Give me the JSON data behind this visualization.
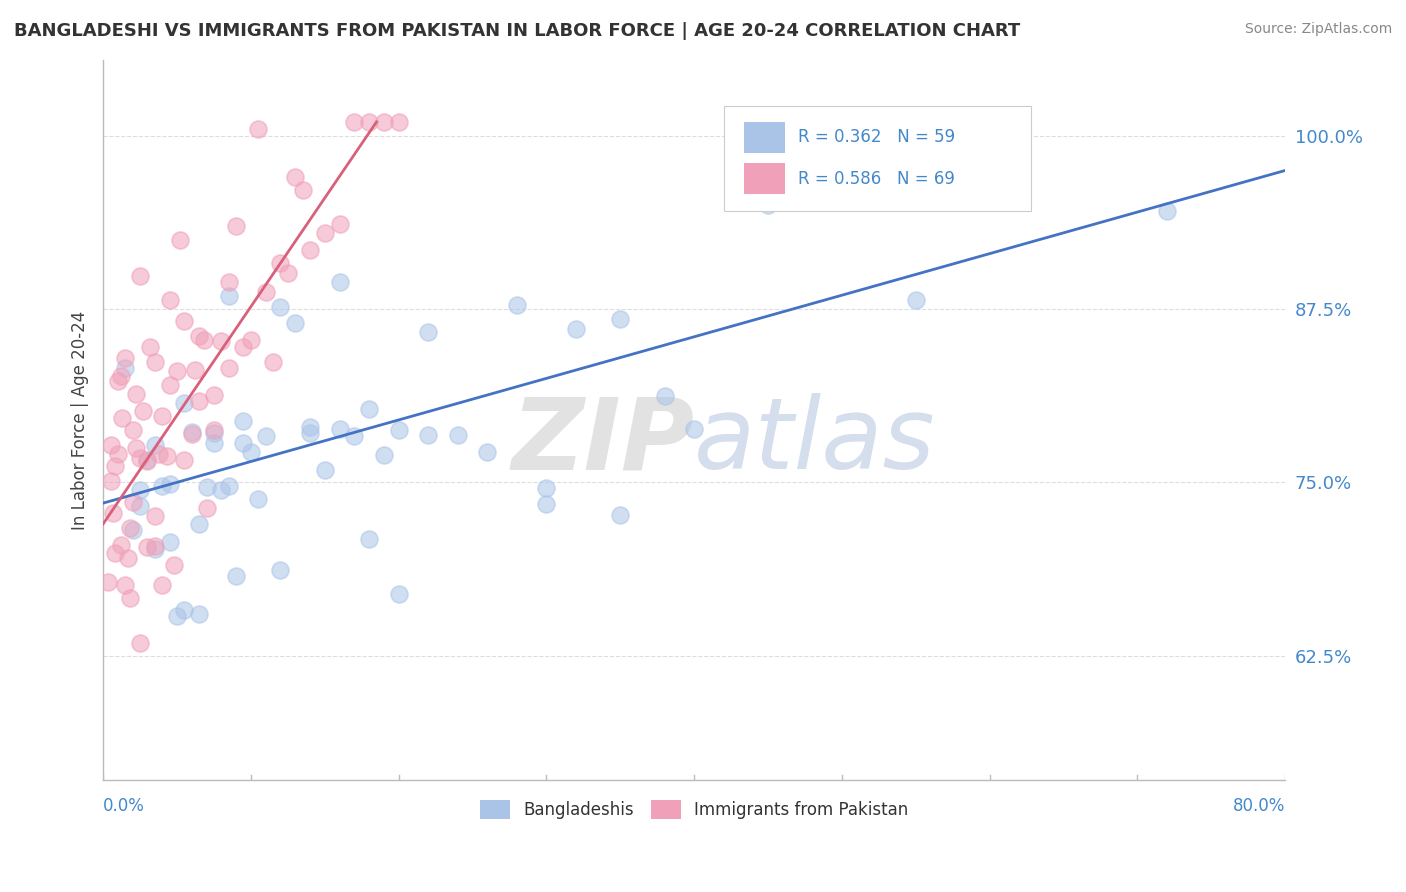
{
  "title": "BANGLADESHI VS IMMIGRANTS FROM PAKISTAN IN LABOR FORCE | AGE 20-24 CORRELATION CHART",
  "source": "Source: ZipAtlas.com",
  "ylabel": "In Labor Force | Age 20-24",
  "y_ticks": [
    0.625,
    0.75,
    0.875,
    1.0
  ],
  "y_tick_labels": [
    "62.5%",
    "75.0%",
    "87.5%",
    "100.0%"
  ],
  "x_range": [
    0.0,
    0.8
  ],
  "y_range": [
    0.535,
    1.055
  ],
  "blue_color": "#aac4e8",
  "pink_color": "#f0a0b8",
  "blue_line_color": "#4472c4",
  "pink_line_color": "#d9607a",
  "background_color": "#ffffff",
  "title_color": "#333333",
  "source_color": "#888888",
  "axis_color": "#bbbbbb",
  "grid_color": "#dddddd",
  "tick_label_color": "#4488cc",
  "legend_R_color": "#4488cc",
  "bottom_label_color": "#333333",
  "blue_line_x": [
    0.0,
    0.8
  ],
  "blue_line_y": [
    0.735,
    0.975
  ],
  "pink_line_x": [
    0.0,
    0.185
  ],
  "pink_line_y": [
    0.72,
    1.01
  ],
  "watermark_zip_color": "#d8d8d8",
  "watermark_atlas_color": "#c8d4e8"
}
